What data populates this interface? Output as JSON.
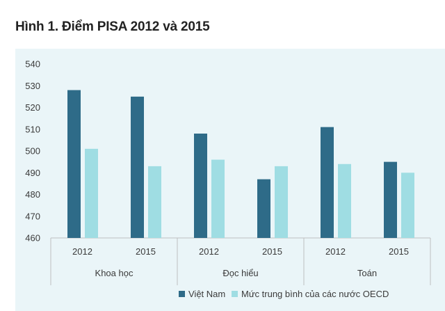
{
  "figure": {
    "title": "Hình 1. Điểm PISA 2012 và 2015"
  },
  "colors": {
    "panel_bg": "#eaf5f8",
    "viet_nam": "#2e6b88",
    "oecd": "#9fdde3",
    "axis": "#bfbfbf",
    "text": "#3a3a3a"
  },
  "chart_data": {
    "type": "bar",
    "title": "Hình 1. Điểm PISA 2012 và 2015",
    "xlabel": "",
    "ylabel": "",
    "ylim": [
      460,
      540
    ],
    "yticks": [
      460,
      470,
      480,
      490,
      500,
      510,
      520,
      530,
      540
    ],
    "groups": [
      "Khoa học",
      "Đọc hiểu",
      "Toán"
    ],
    "categories": [
      "2012",
      "2015",
      "2012",
      "2015",
      "2012",
      "2015"
    ],
    "series": [
      {
        "name": "Việt Nam",
        "color": "#2e6b88",
        "values": [
          528,
          525,
          508,
          487,
          511,
          495
        ]
      },
      {
        "name": "Mức trung bình của các nước OECD",
        "color": "#9fdde3",
        "values": [
          501,
          493,
          496,
          493,
          494,
          490
        ]
      }
    ],
    "grid": false,
    "legend": "bottom-center"
  }
}
